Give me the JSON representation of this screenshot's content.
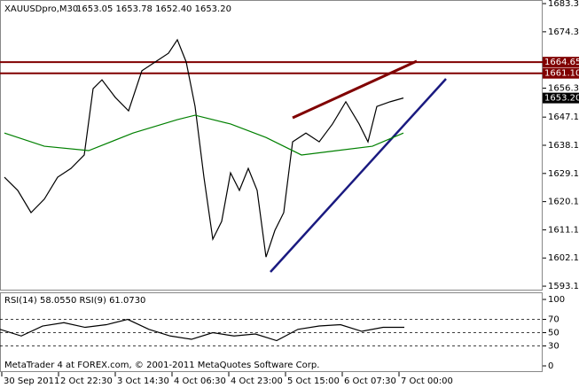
{
  "chart_data": [
    {
      "type": "line",
      "title": "XAUUSDpro,M30",
      "subtitle": "1653.05 1653.78 1652.40 1653.20",
      "xlim": [
        0,
        306
      ],
      "ylim": [
        1591.7,
        1684.5
      ],
      "yticks": [
        1683.35,
        1674.35,
        1656.35,
        {
          "value": 1647.1,
          "label": "1647.10"
        },
        {
          "value": 1638.1,
          "label": "1638.10"
        },
        {
          "value": 1629.1,
          "label": "1629.10"
        },
        {
          "value": 1620.1,
          "label": "1620.10"
        },
        {
          "value": 1611.1,
          "label": "1611.10"
        },
        {
          "value": 1602.1,
          "label": "1602.10"
        },
        {
          "value": 1593.1,
          "label": "1593.10"
        }
      ],
      "xticks": [
        {
          "value": 0,
          "label": "30 Sep 2011"
        },
        {
          "value": 32,
          "label": "2 Oct 22:30"
        },
        {
          "value": 64,
          "label": "3 Oct 14:30"
        },
        {
          "value": 96,
          "label": "4 Oct 06:30"
        },
        {
          "value": 128,
          "label": "4 Oct 23:00"
        },
        {
          "value": 160,
          "label": "5 Oct 15:00"
        },
        {
          "value": 192,
          "label": "6 Oct 07:30"
        },
        {
          "value": 224,
          "label": "7 Oct 00:00"
        }
      ],
      "series": [
        {
          "color": "#000000",
          "x": [
            2.5,
            10,
            17.5,
            25,
            32.5,
            40,
            47.5,
            52.5,
            57.5,
            65,
            72.5,
            80,
            87.5,
            95,
            100,
            105,
            110,
            115,
            120,
            125,
            130,
            135,
            140,
            145,
            150,
            155,
            160,
            165,
            172.5,
            180,
            187.5,
            195,
            202.5,
            207.5,
            212.5,
            220,
            227.5
          ],
          "values": [
            1627.9,
            1623.7,
            1616.6,
            1620.9,
            1627.9,
            1630.7,
            1635.0,
            1656.2,
            1659.0,
            1653.4,
            1649.1,
            1661.9,
            1664.7,
            1667.5,
            1671.8,
            1664.7,
            1650.5,
            1627.9,
            1608.1,
            1613.8,
            1629.3,
            1623.7,
            1630.7,
            1623.7,
            1602.4,
            1610.9,
            1616.6,
            1639.2,
            1642.0,
            1639.2,
            1644.9,
            1652.0,
            1644.9,
            1639.2,
            1650.5,
            1652.0,
            1653.2
          ]
        },
        {
          "color": "#008000",
          "x": [
            2.5,
            25,
            50,
            75,
            100,
            110,
            130,
            150,
            170,
            190,
            210,
            227.5
          ],
          "values": [
            1642.0,
            1637.8,
            1636.4,
            1642.0,
            1646.3,
            1647.7,
            1644.9,
            1640.6,
            1635.0,
            1636.4,
            1637.8,
            1642.0
          ]
        }
      ],
      "levels": [
        1664.65,
        {
          "value": 1661.1,
          "label": "1661.10"
        }
      ],
      "level_color": "#800000",
      "last_price": {
        "value": 1653.2,
        "label": "1653.20"
      }
    },
    {
      "type": "line",
      "title": "RSI(14) 58.0550  RSI(9) 61.0730",
      "xlim": [
        0,
        306
      ],
      "ylim": [
        -9.3,
        110.7
      ],
      "yticks": [
        0,
        30,
        50,
        70,
        100
      ],
      "series": [
        {
          "color": "#000000",
          "x": [
            0,
            12,
            24,
            36,
            48,
            60,
            72,
            84,
            96,
            108,
            120,
            132,
            144,
            156,
            168,
            180,
            192,
            204,
            216,
            228
          ],
          "values": [
            55,
            45,
            60,
            65,
            58,
            62,
            70,
            55,
            45,
            40,
            50,
            45,
            48,
            38,
            55,
            60,
            62,
            52,
            58,
            58.06
          ]
        }
      ],
      "annotation": "MetaTrader 4 at FOREX.com, © 2001-2011 MetaQuotes Software Corp."
    }
  ]
}
